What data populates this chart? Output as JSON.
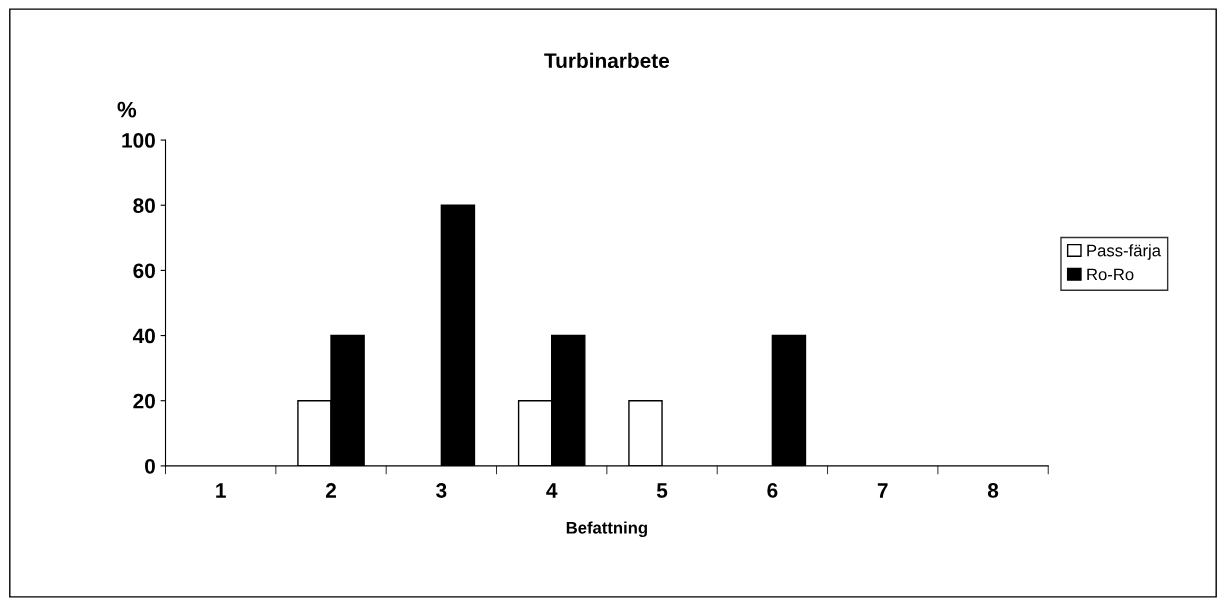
{
  "chart_data": {
    "type": "bar",
    "title": "Turbinarbete",
    "xlabel": "Befattning",
    "ylabel": "%",
    "categories": [
      "1",
      "2",
      "3",
      "4",
      "5",
      "6",
      "7",
      "8"
    ],
    "series": [
      {
        "name": "Pass-färja",
        "color": "#ffffff",
        "values": [
          null,
          20,
          null,
          20,
          20,
          null,
          null,
          null
        ]
      },
      {
        "name": "Ro-Ro",
        "color": "#000000",
        "values": [
          null,
          40,
          80,
          40,
          null,
          40,
          null,
          null
        ]
      }
    ],
    "ylim": [
      0,
      100
    ],
    "yticks": [
      0,
      20,
      40,
      60,
      80,
      100
    ],
    "grid": false,
    "legend": "right"
  }
}
